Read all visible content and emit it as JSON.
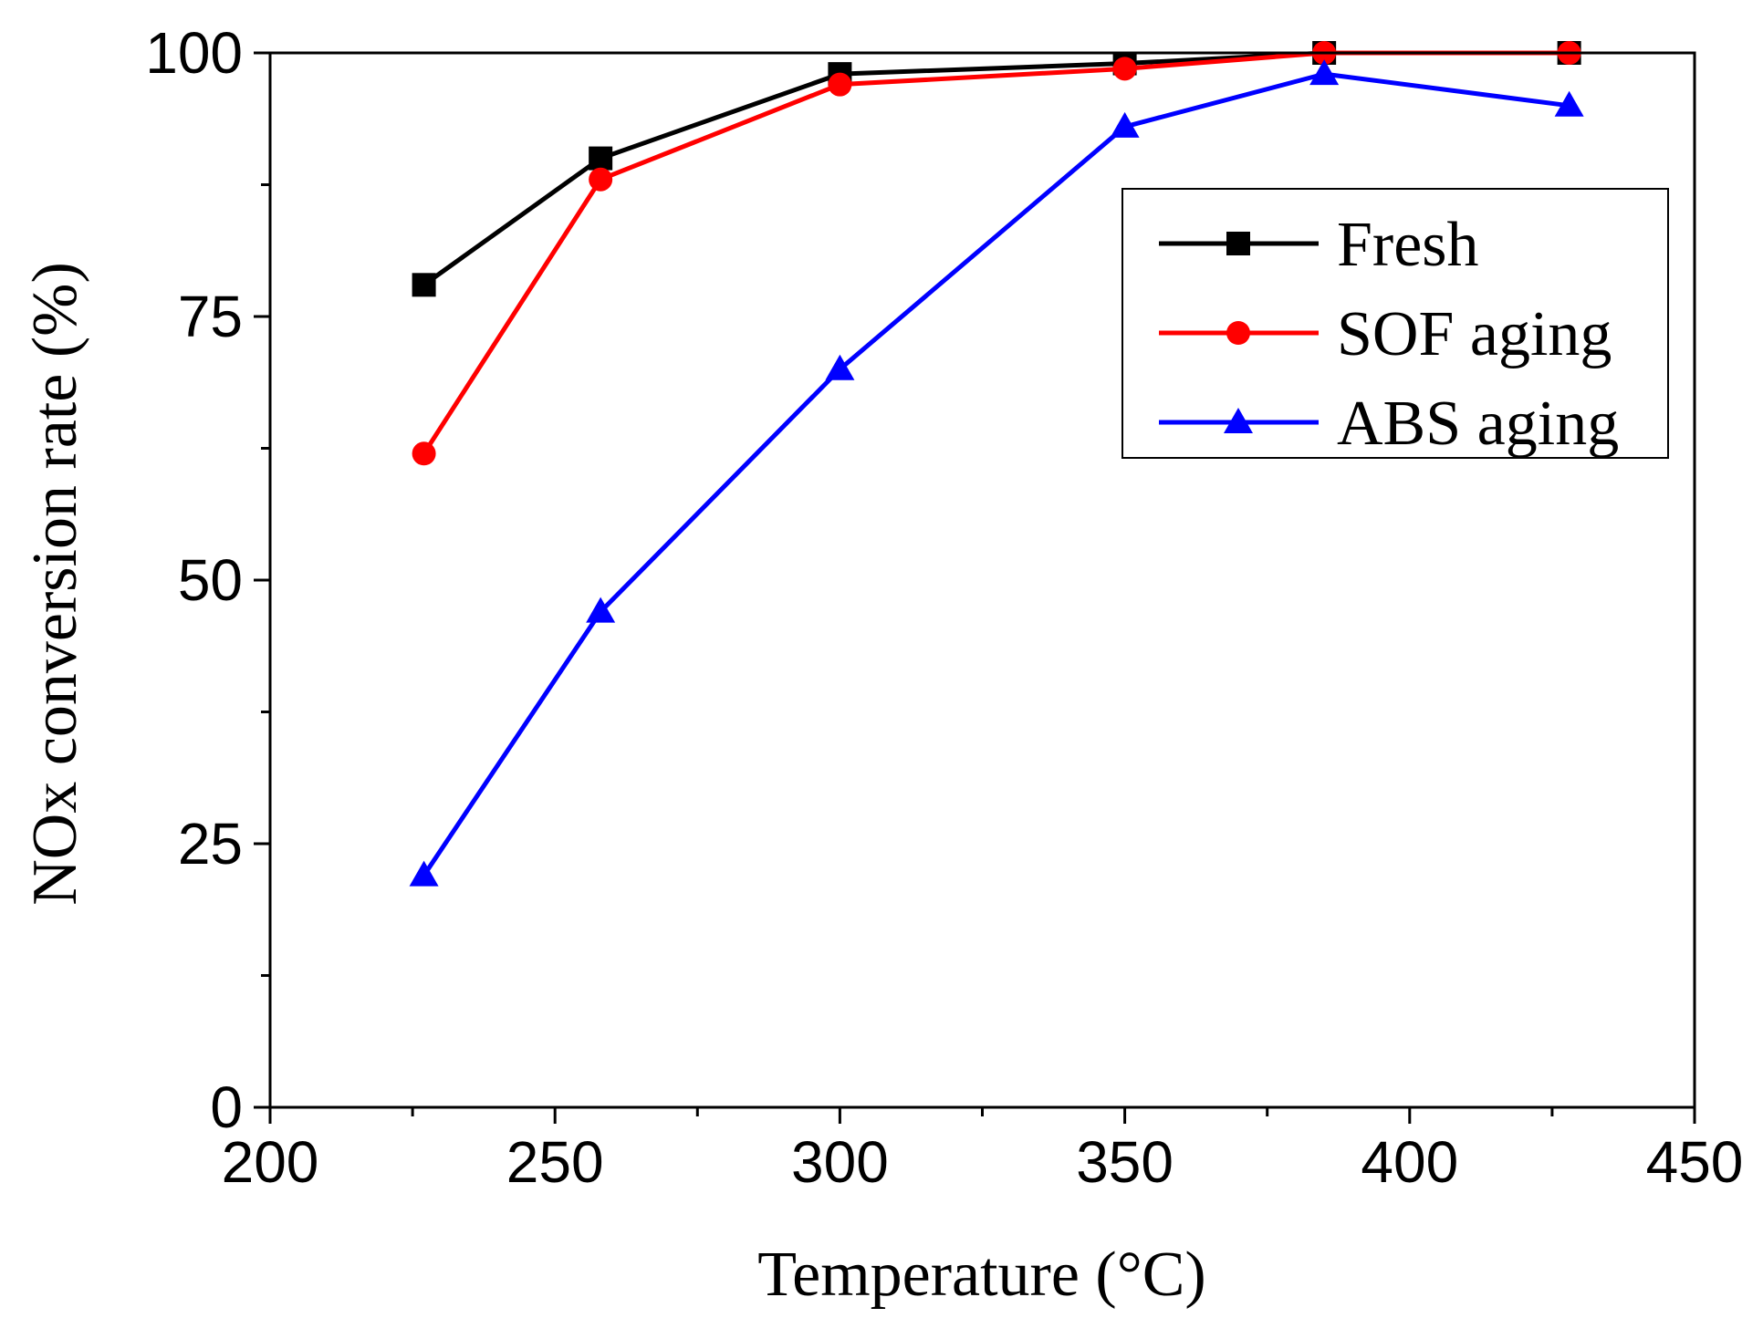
{
  "chart_data": {
    "type": "line",
    "title": "",
    "xlabel": "Temperature (°C)",
    "ylabel": "NOx conversion rate (%)",
    "xlim": [
      200,
      450
    ],
    "ylim": [
      0,
      100
    ],
    "x_major_ticks": [
      200,
      250,
      300,
      350,
      400,
      450
    ],
    "x_tick_labels": [
      "200",
      "250",
      "300",
      "350",
      "400",
      "450"
    ],
    "x_minor_ticks": [
      225,
      275,
      325,
      375,
      425
    ],
    "y_major_ticks": [
      0,
      25,
      50,
      75,
      100
    ],
    "y_tick_labels": [
      "0",
      "25",
      "50",
      "75",
      "100"
    ],
    "y_minor_ticks": [
      12.5,
      37.5,
      62.5,
      87.5
    ],
    "grid": false,
    "legend_position": "top-right",
    "series": [
      {
        "name": "Fresh",
        "color": "#000000",
        "marker": "square",
        "x": [
          227,
          258,
          300,
          350,
          385,
          428
        ],
        "values": [
          78,
          90,
          98,
          99,
          100,
          100
        ]
      },
      {
        "name": "SOF aging",
        "color": "#ff0000",
        "marker": "circle",
        "x": [
          227,
          258,
          300,
          350,
          385,
          428
        ],
        "values": [
          62,
          88,
          97,
          98.5,
          100,
          100
        ]
      },
      {
        "name": "ABS aging",
        "color": "#0000ff",
        "marker": "triangle",
        "x": [
          227,
          258,
          300,
          350,
          385,
          428
        ],
        "values": [
          22,
          47,
          70,
          93,
          98,
          95
        ]
      }
    ]
  }
}
